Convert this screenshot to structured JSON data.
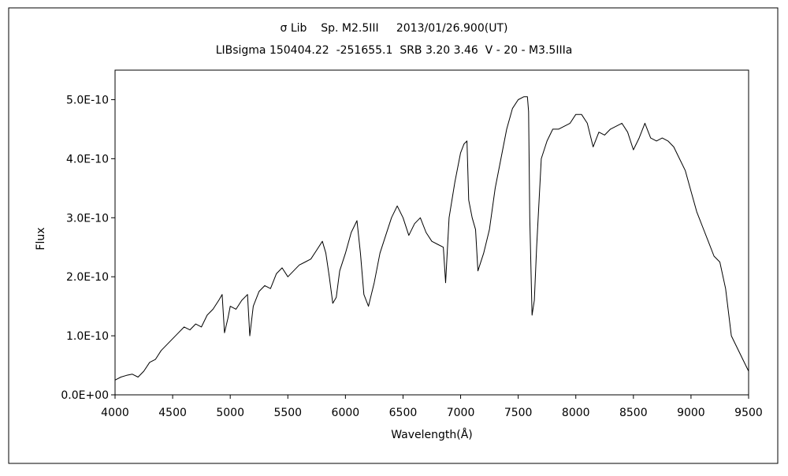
{
  "chart_data": {
    "type": "line",
    "title": "σ Lib    Sp. M2.5III     2013/01/26.900(UT)",
    "subtitle": "LIBsigma 150404.22  -251655.1  SRB 3.20 3.46  V - 20 - M3.5IIIa",
    "xlabel": "Wavelength(Å)",
    "ylabel": "Flux",
    "xlim": [
      4000,
      9500
    ],
    "ylim": [
      0,
      5.5e-10
    ],
    "grid": false,
    "x_ticks": [
      4000,
      4500,
      5000,
      5500,
      6000,
      6500,
      7000,
      7500,
      8000,
      8500,
      9000,
      9500
    ],
    "x_tick_labels": [
      "4000",
      "4500",
      "5000",
      "5500",
      "6000",
      "6500",
      "7000",
      "7500",
      "8000",
      "8500",
      "9000",
      "9500"
    ],
    "y_ticks": [
      0,
      1e-10,
      2e-10,
      3e-10,
      4e-10,
      5e-10
    ],
    "y_tick_labels": [
      "0.0E+00",
      "1.0E-10",
      "2.0E-10",
      "3.0E-10",
      "4.0E-10",
      "5.0E-10"
    ],
    "series": [
      {
        "color": "#000000",
        "x": [
          4000,
          4050,
          4100,
          4150,
          4200,
          4250,
          4300,
          4350,
          4400,
          4450,
          4500,
          4550,
          4600,
          4650,
          4700,
          4750,
          4800,
          4850,
          4900,
          4930,
          4950,
          4980,
          5000,
          5050,
          5100,
          5150,
          5170,
          5200,
          5250,
          5300,
          5350,
          5400,
          5450,
          5500,
          5550,
          5600,
          5650,
          5700,
          5750,
          5800,
          5830,
          5860,
          5890,
          5920,
          5950,
          6000,
          6050,
          6100,
          6130,
          6160,
          6200,
          6250,
          6300,
          6350,
          6400,
          6450,
          6500,
          6550,
          6600,
          6650,
          6700,
          6750,
          6800,
          6850,
          6870,
          6900,
          6950,
          7000,
          7030,
          7055,
          7070,
          7100,
          7130,
          7150,
          7200,
          7250,
          7300,
          7350,
          7400,
          7450,
          7500,
          7550,
          7580,
          7590,
          7600,
          7620,
          7640,
          7660,
          7700,
          7750,
          7800,
          7850,
          7900,
          7950,
          8000,
          8050,
          8100,
          8150,
          8200,
          8250,
          8300,
          8350,
          8400,
          8450,
          8500,
          8550,
          8600,
          8650,
          8700,
          8750,
          8800,
          8850,
          8900,
          8950,
          9000,
          9050,
          9100,
          9150,
          9200,
          9250,
          9300,
          9350,
          9400,
          9450,
          9500
        ],
        "values": [
          2.5e-11,
          3e-11,
          3.3e-11,
          3.5e-11,
          3e-11,
          4e-11,
          5.5e-11,
          6e-11,
          7.5e-11,
          8.5e-11,
          9.5e-11,
          1.05e-10,
          1.15e-10,
          1.1e-10,
          1.2e-10,
          1.15e-10,
          1.35e-10,
          1.45e-10,
          1.6e-10,
          1.7e-10,
          1.05e-10,
          1.3e-10,
          1.5e-10,
          1.45e-10,
          1.6e-10,
          1.7e-10,
          1e-10,
          1.5e-10,
          1.75e-10,
          1.85e-10,
          1.8e-10,
          2.05e-10,
          2.15e-10,
          2e-10,
          2.1e-10,
          2.2e-10,
          2.25e-10,
          2.3e-10,
          2.45e-10,
          2.6e-10,
          2.4e-10,
          2e-10,
          1.55e-10,
          1.65e-10,
          2.1e-10,
          2.4e-10,
          2.75e-10,
          2.95e-10,
          2.4e-10,
          1.7e-10,
          1.5e-10,
          1.9e-10,
          2.4e-10,
          2.7e-10,
          3e-10,
          3.2e-10,
          3e-10,
          2.7e-10,
          2.9e-10,
          3e-10,
          2.75e-10,
          2.6e-10,
          2.55e-10,
          2.5e-10,
          1.9e-10,
          3e-10,
          3.6e-10,
          4.1e-10,
          4.25e-10,
          4.3e-10,
          3.3e-10,
          3e-10,
          2.8e-10,
          2.1e-10,
          2.4e-10,
          2.8e-10,
          3.5e-10,
          4e-10,
          4.5e-10,
          4.85e-10,
          5e-10,
          5.05e-10,
          5.05e-10,
          4.8e-10,
          3e-10,
          1.35e-10,
          1.6e-10,
          2.5e-10,
          4e-10,
          4.3e-10,
          4.5e-10,
          4.5e-10,
          4.55e-10,
          4.6e-10,
          4.75e-10,
          4.75e-10,
          4.6e-10,
          4.2e-10,
          4.45e-10,
          4.4e-10,
          4.5e-10,
          4.55e-10,
          4.6e-10,
          4.45e-10,
          4.15e-10,
          4.35e-10,
          4.6e-10,
          4.35e-10,
          4.3e-10,
          4.35e-10,
          4.3e-10,
          4.2e-10,
          4e-10,
          3.8e-10,
          3.45e-10,
          3.1e-10,
          2.85e-10,
          2.6e-10,
          2.35e-10,
          2.25e-10,
          1.8e-10,
          1e-10,
          8e-11,
          6e-11,
          4e-11
        ]
      }
    ]
  }
}
